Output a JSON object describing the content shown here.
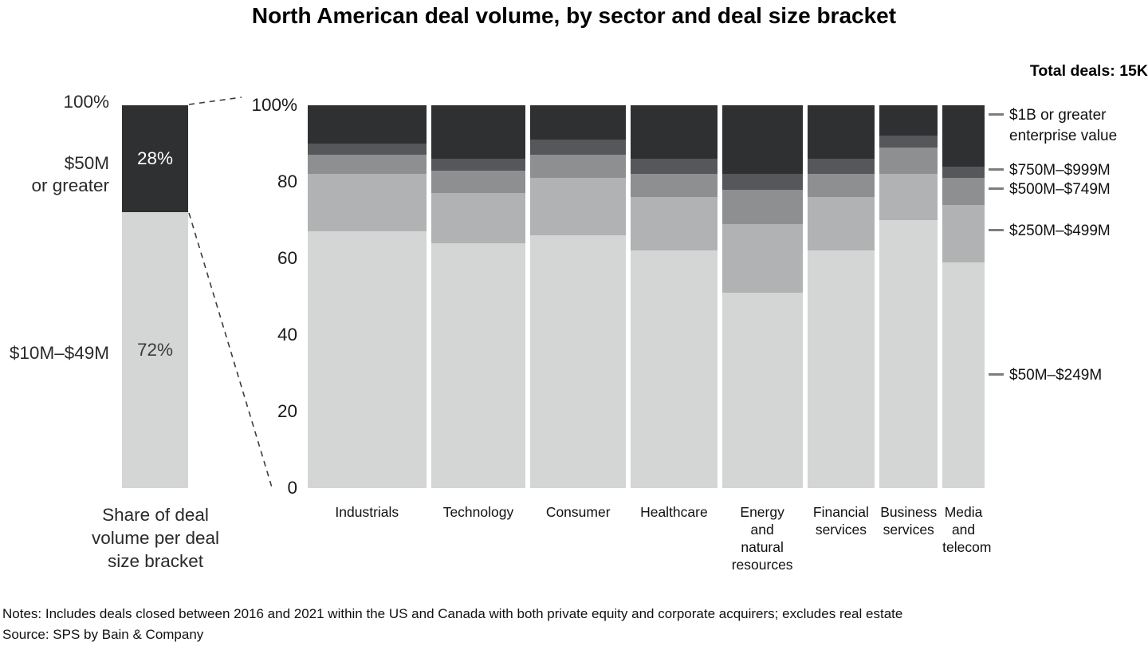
{
  "title": "North American deal volume, by sector and deal size bracket",
  "total_deals_label": "Total deals: 15K",
  "left_chart": {
    "top_tick": "100%",
    "caption": "Share of deal\nvolume per deal\nsize bracket",
    "segments": [
      {
        "label": "$50M\nor greater",
        "value": 28,
        "value_label": "28%",
        "color": "#2f3032",
        "text_color": "#ffffff"
      },
      {
        "label": "$10M–$49M",
        "value": 72,
        "value_label": "72%",
        "color": "#d4d5d5",
        "text_color": "#3a3a3a"
      }
    ]
  },
  "chart_data": {
    "type": "bar",
    "subtype": "100%-stacked-variable-width-columns",
    "title": "North American deal volume, by sector and deal size bracket",
    "categories": [
      "Industrials",
      "Technology",
      "Consumer",
      "Healthcare",
      "Energy\nand\nnatural\nresources",
      "Financial\nservices",
      "Business\nservices",
      "Media\nand\ntelecom"
    ],
    "bar_width_weights": [
      149,
      119,
      120,
      109,
      101,
      85,
      73,
      53
    ],
    "y_axis": {
      "tick_labels": [
        "100%",
        "80",
        "60",
        "40",
        "20",
        "0"
      ],
      "tick_values": [
        100,
        80,
        60,
        40,
        20,
        0
      ],
      "ylim": [
        0,
        100
      ],
      "grid": false
    },
    "series": [
      {
        "name": "$1B or greater enterprise value",
        "color": "#2f3032",
        "values": [
          10,
          14,
          9,
          14,
          18,
          14,
          8,
          16
        ]
      },
      {
        "name": "$750M–$999M",
        "color": "#55575a",
        "values": [
          3,
          3,
          4,
          4,
          4,
          4,
          3,
          3
        ]
      },
      {
        "name": "$500M–$749M",
        "color": "#8e8f90",
        "values": [
          5,
          6,
          6,
          6,
          9,
          6,
          7,
          7
        ]
      },
      {
        "name": "$250M–$499M",
        "color": "#b1b2b3",
        "values": [
          15,
          13,
          15,
          14,
          18,
          14,
          12,
          15
        ]
      },
      {
        "name": "$50M–$249M",
        "color": "#d4d5d5",
        "values": [
          67,
          64,
          66,
          62,
          51,
          62,
          70,
          59
        ]
      }
    ],
    "legend": [
      "$1B or greater\nenterprise value",
      "$750M–$999M",
      "$500M–$749M",
      "$250M–$499M",
      "$50M–$249M"
    ],
    "legend_position": "right"
  },
  "notes": "Notes: Includes deals closed between 2016 and 2021 within the US and Canada with both private equity and corporate acquirers; excludes real estate",
  "source": "Source: SPS by Bain & Company"
}
